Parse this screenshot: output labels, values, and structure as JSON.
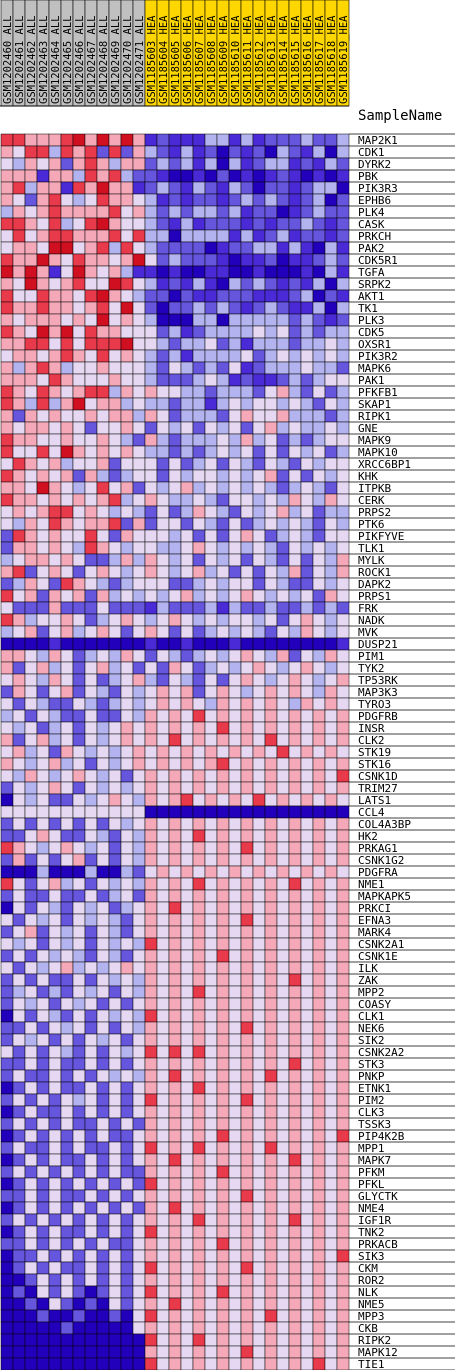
{
  "chart_data": {
    "type": "heatmap",
    "row_header": "SampleName",
    "column_groups": [
      {
        "name": "ALL",
        "color": "#c0c0c0"
      },
      {
        "name": "HEA",
        "color": "#ffd700"
      }
    ],
    "columns": [
      {
        "label": "GSM1202460_ALL",
        "group": "ALL"
      },
      {
        "label": "GSM1202461_ALL",
        "group": "ALL"
      },
      {
        "label": "GSM1202462_ALL",
        "group": "ALL"
      },
      {
        "label": "GSM1202463_ALL",
        "group": "ALL"
      },
      {
        "label": "GSM1202464_ALL",
        "group": "ALL"
      },
      {
        "label": "GSM1202465_ALL",
        "group": "ALL"
      },
      {
        "label": "GSM1202466_ALL",
        "group": "ALL"
      },
      {
        "label": "GSM1202467_ALL",
        "group": "ALL"
      },
      {
        "label": "GSM1202468_ALL",
        "group": "ALL"
      },
      {
        "label": "GSM1202469_ALL",
        "group": "ALL"
      },
      {
        "label": "GSM1202470_ALL",
        "group": "ALL"
      },
      {
        "label": "GSM1202471_ALL",
        "group": "ALL"
      },
      {
        "label": "GSM1185603_HEA",
        "group": "HEA"
      },
      {
        "label": "GSM1185604_HEA",
        "group": "HEA"
      },
      {
        "label": "GSM1185605_HEA",
        "group": "HEA"
      },
      {
        "label": "GSM1185606_HEA",
        "group": "HEA"
      },
      {
        "label": "GSM1185607_HEA",
        "group": "HEA"
      },
      {
        "label": "GSM1185608_HEA",
        "group": "HEA"
      },
      {
        "label": "GSM1185609_HEA",
        "group": "HEA"
      },
      {
        "label": "GSM1185610_HEA",
        "group": "HEA"
      },
      {
        "label": "GSM1185611_HEA",
        "group": "HEA"
      },
      {
        "label": "GSM1185612_HEA",
        "group": "HEA"
      },
      {
        "label": "GSM1185613_HEA",
        "group": "HEA"
      },
      {
        "label": "GSM1185614_HEA",
        "group": "HEA"
      },
      {
        "label": "GSM1185615_HEA",
        "group": "HEA"
      },
      {
        "label": "GSM1185616_HEA",
        "group": "HEA"
      },
      {
        "label": "GSM1185617_HEA",
        "group": "HEA"
      },
      {
        "label": "GSM1185618_HEA",
        "group": "HEA"
      },
      {
        "label": "GSM1185619_HEA",
        "group": "HEA"
      }
    ],
    "rows": [
      "MAP2K1",
      "CDK1",
      "DYRK2",
      "PBK",
      "PIK3R3",
      "EPHB6",
      "PLK4",
      "CASK",
      "PRKCH",
      "PAK2",
      "CDK5R1",
      "TGFA",
      "SRPK2",
      "AKT1",
      "TK1",
      "PLK3",
      "CDK5",
      "OXSR1",
      "PIK3R2",
      "MAPK6",
      "PAK1",
      "PFKFB1",
      "SKAP1",
      "RIPK1",
      "GNE",
      "MAPK9",
      "MAPK10",
      "XRCC6BP1",
      "KHK",
      "ITPKB",
      "CERK",
      "PRPS2",
      "PTK6",
      "PIKFYVE",
      "TLK1",
      "MYLK",
      "ROCK1",
      "DAPK2",
      "PRPS1",
      "FRK",
      "NADK",
      "MVK",
      "DUSP21",
      "PIM1",
      "TYK2",
      "TP53RK",
      "MAP3K3",
      "TYRO3",
      "PDGFRB",
      "INSR",
      "CLK2",
      "STK19",
      "STK16",
      "CSNK1D",
      "TRIM27",
      "LATS1",
      "CCL4",
      "COL4A3BP",
      "HK2",
      "PRKAG1",
      "CSNK1G2",
      "PDGFRA",
      "NME1",
      "MAPKAPK5",
      "PRKCI",
      "EFNA3",
      "MARK4",
      "CSNK2A1",
      "CSNK1E",
      "ILK",
      "ZAK",
      "MPP2",
      "COASY",
      "CLK1",
      "NEK6",
      "SIK2",
      "CSNK2A2",
      "STK3",
      "PNKP",
      "ETNK1",
      "PIM2",
      "CLK3",
      "TSSK3",
      "PIP4K2B",
      "MPP1",
      "MAPK7",
      "PFKM",
      "PFKL",
      "GLYCTK",
      "NME4",
      "IGF1R",
      "TNK2",
      "PRKACB",
      "SIK3",
      "CKM",
      "ROR2",
      "NLK",
      "NME5",
      "MPP3",
      "CKB",
      "RIPK2",
      "MAPK12",
      "TIE1"
    ],
    "values": [
      "HHhhhHMhMhMhdLdddlldldLLLlLLl",
      "hmHHlHhHLHLhlLdldLDLdLDlLdlDl",
      "mlhmhLhHhlhhLlLldlDldLlldLdlL",
      "hhhdhhlHhHlLLdDDdDLDdDdLdDdDd",
      "hHlhhdHhMhhdLlLdlLdlLDLLdLllD",
      "hmLhHmlmHhhmldLdLLdLlLlLdLlDL",
      "lhmhHhhhhHmhlLlLllLldLLDdLlLL",
      "HHhmHlmHMhmmlLdldLLLdLdLLlLdL",
      "mHmhHHhhhHmHllDlllldldLldLLdL",
      "mhhmMMmhHlHmlLLLLDdLLlldldDld",
      "HhhMhmHhhmhMmLlLLLdDddLDddLlL",
      "MhMhdmMhmhlddDdDDddDDdDDDdDld",
      "hmMhmhHmmMHmldLdldDlLlLdLdlDl",
      "HmmHhhmHMhmlLLDLddLLLdddLlDLd",
      "HhhHhhmhHmMmLDLLlLlLdLlLddlDl",
      "hmhhhmhmMmhmlDDDllDlllllLlLdL",
      "HhmMhMmHhhmmmLldLllllmlmLlLll",
      "hhHHmHmHHHMmmlLllmLldlllLllml",
      "mhhmhHhmHmhmlLldllllmLlmlmlml",
      "hlhHhlmmhmmmlLmlLlLmdLlllmllL",
      "hhhmHhmmmhmmlLLLlmldLddLlLlmm",
      "HhmHhmhHHlhmhmmllLlllLmhlLmLl",
      "HhlHlhMmhhlmllLlldlmlmmlmlLml",
      "hLhmhmmhmhhlhmLlllLmhmmhlllLl",
      "hmhhmhmLmmhmLmlmLmlmLmhlmllml",
      "HhhmmhmmhmlLhlLlllmlhlmLlLlmm",
      "HmmHmMhmhmhmllLlLlmlmLmLmlmLl",
      "mHhmhlmmhLmmmLmLlmLmlLmlLmlmm",
      "HhmhmhLhlLlmmLmlmmlmlmhLmLmlm",
      "hhmMhmlmHmhLmlmhlmlmlmlLlmlLm",
      "HhhmhmhmhHlmhmllmlLmmlmlhmlhm",
      "mhmhHHmhmlmlLmLlhmlLmlmhlmLll",
      "mlhmHhmhhHLhLmmLmlLmLlmlmlLml",
      "LHhmhmmHmLhmmmlmLmLmhmLlmlLmm",
      "LhhmhmlHhmlmmllmhmlmlmlLmlmlm",
      "lmhhmhmLLlhlhmlmLmlmLmlLmLmlh",
      "hHLmhmLmhmlmhmlmhlmLmLmlhLmlh",
      "LlhmLHhmlLlmmmLLlmlmmLmlLLmlm",
      "HmhLhmhLhlmlmlmhlmlmhmlmlmLhm",
      "mLLLhLLLmLLLdlLLLldlLLlLLlLlL",
      "HhlmmhmLlmhmlmhmlmlmmlmLmhmlm",
      "lmhLmhlmhmLmhmLmLlmlmlLmlhmlm",
      "DDDDdDDDDDDDdDDdDDDdDDDDDDDDd",
      "hhmlhmLlmlhmLmlLlmlmhmlhLmlhm",
      "hLmhlmLmhlmLmLhmLlmlmhmlmhmlm",
      "mhmlhmLmLlmhlLmlLmLmhmlmhmlmh",
      "LhmLmhLmlLmlmhmhLmhmlmhmhmlhm",
      "mLmlLLmlLlmlmhmhmlhmhmhmlhmhm",
      "lmLmlLLmLLmlhmhmHmhmhmhmhmhmh",
      "mlmLlmLmlmhmhmhmhmHmhmhmhmhmh",
      "hLmhlmLmlmhmhmHmhmhmhmHmhmhmh",
      "mhlmLhmlmlmhmhmhmhmhmhmHmhmhm",
      "hmlmhlmLmlmhmhmhmhHmhmhmhmhmh",
      "mlhmlmhmlmLmhmhmhmhmhmhmhmhmH",
      "LmlmhmLmlmlmhmhmhmhmhmhmhmhmh",
      "DmlmLLmlmhmlhmhHmhmhmHmhmhmhm",
      "mmmmmmmmmmmmDDDDDDDDDDDDDDDDD",
      "LmLmLmLmLmlmhmhmhmhmhmhmhmhmh",
      "LLmhmLLmlLmlhmhmHmhmhmhmhmhmh",
      "HhmlmhmlmLmlhmhmhmhmHmhmhmhmh",
      "LhLmLmhLmLmlhmhmhmhmhmhmhmhmh",
      "DDDlDDDlDDlLmhmhmhmhmhmhmhmhm",
      "HmLmhlmLmlmlhmhmHmhmhmhmHmhmh",
      "LmLLmLLmLlmLhmhmhmhmhmhmhmhmh",
      "DmLmlLmlmLlmhmHmhmhmhmhmhmhmh",
      "mLmlmLmlmlLmhmhmhmhmHmhmhmhmh",
      "LmhLmlmLmlLmhmhmhmhmhmhmhmhmh",
      "mlmLmlmLmlmlHmhmhmhmhmhmhmhmh",
      "LmLmlmlLmlLmhmhmhmHmhmhmhmhmh",
      "mLmlmhlmlmhmhmhmhmhmhmhmhmhmh",
      "LmLmLLmLmlmlhmhmhmhmhmhmHmhmh",
      "LlmLlLmlmLmlhmhmHmhmhmhmhmhmh",
      "LmlmLmlmLmLmhmhmhmhmhmhmhmhmh",
      "DmLmlLmLmlmlHmhmhmhmhmhmhmhmh",
      "LLmLmlmLmLmlhmhmhmhmHmhmhmhmh",
      "LmlmLmLmlmLmhmhmhmhmhmhmhmhmh",
      "mLmLmlLmLmlmHmHmHmhmhmhmhmhmh",
      "LLmLmLLmLmLmhmhmhmhmhmhmHmhmh",
      "LmLLmLmLmlmlhmHmhmhmhmHmhmhmh",
      "DLmLmLLmLmLmhmhmHmhmhmhmhmhmh",
      "LmLmLmlmLmLmHmhmhmhmHmhmhmhmh",
      "DLmLLmLmLmLmhmhmhmhmhmhmhmhmh",
      "LmLmLmLLmLmLhmhmhmhmhmhmhmhmh",
      "DLmLmLmLmLLmhmhmhmHmhmhmhmhmH",
      "LmLLmLmLLmLmHmhmHmhmhmHmhmhmh",
      "DLmLmLLmLmLmhmHmhmhmhmhmHmhmh",
      "LmLmLmLmLmLLhmhmhmHmhmhmhmhmh",
      "DLmLmLmLmLmLHmhmhmhmhmhmhmhmh",
      "LLmLmLLmLmLmhmhmhmhmHmhmhmhmh",
      "DLmLmLmLmLmLhmHmhmhmhmhmhmhmh",
      "LmLmLmLmLmLmhmhmHmhmhmhmHmhmh",
      "DLmLmLLmLmLmHmhmhmhmhmhmhmhmh",
      "LLmLmLmLmLLmhmhmhmHmhmhmhmhmh",
      "DLLmLmLmLmLmhmhmhmhmhmhmhmhmH",
      "DLmLmLLmLmLmHmhmhmhmHmhmhmhmh",
      "DDLmLmLmLmLmhmhmhmhmhmhmhmhmh",
      "DLDmLmLDLmLmHmhmhmHmhmhmhmhmh",
      "DDLDmLDLDmLmhmHmhmhmhmhmhmhmh",
      "DDDLDDLDDLDmHmhmhmhmhmHmhmhmh",
      "DDDDDLDDDDDmhmhmhmhmhmhmhmhmh",
      "DDDDDDDDDDDDHmhmHmhmhmhmhmhmh",
      "DDDDDDDDDDDDhmhmhmhmHmhmhmhmh",
      "DDDDDDDDDDDDHmhmhmhmhmhmhmHmh"
    ]
  }
}
